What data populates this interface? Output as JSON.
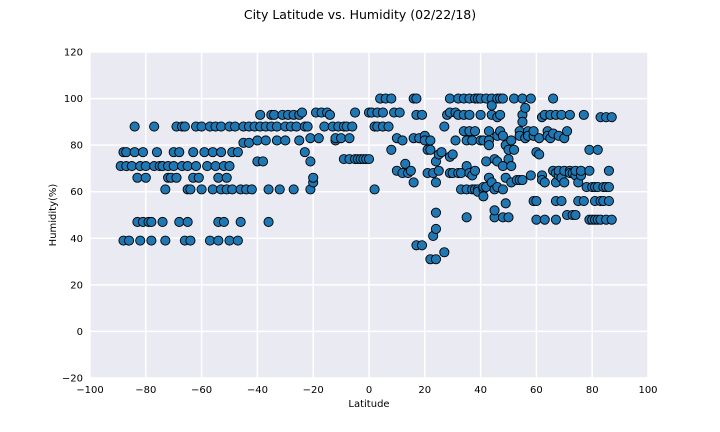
{
  "chart_data": {
    "type": "scatter",
    "title": "City Latitude vs. Humidity (02/22/18)",
    "xlabel": "Latitude",
    "ylabel": "Humidity(%)",
    "xlim": [
      -100,
      100
    ],
    "ylim": [
      -20,
      120
    ],
    "xticks": [
      -100,
      -80,
      -60,
      -40,
      -20,
      0,
      20,
      40,
      60,
      80,
      100
    ],
    "yticks": [
      -20,
      0,
      20,
      40,
      60,
      80,
      100,
      120
    ],
    "grid": true,
    "colors": {
      "marker": "#1f77b4",
      "edge": "#000000",
      "plot_bg": "#eaeaf2",
      "grid": "#ffffff"
    },
    "points": [
      [
        -89,
        71
      ],
      [
        -88,
        77
      ],
      [
        -88,
        39
      ],
      [
        -87,
        77
      ],
      [
        -87,
        71
      ],
      [
        -86,
        39
      ],
      [
        -85,
        71
      ],
      [
        -84,
        77
      ],
      [
        -84,
        88
      ],
      [
        -83,
        66
      ],
      [
        -83,
        47
      ],
      [
        -82,
        71
      ],
      [
        -82,
        39
      ],
      [
        -81,
        77
      ],
      [
        -81,
        47
      ],
      [
        -80,
        66
      ],
      [
        -80,
        71
      ],
      [
        -79,
        47
      ],
      [
        -78,
        39
      ],
      [
        -78,
        47
      ],
      [
        -77,
        88
      ],
      [
        -77,
        71
      ],
      [
        -76,
        77
      ],
      [
        -75,
        71
      ],
      [
        -74,
        47
      ],
      [
        -74,
        71
      ],
      [
        -73,
        39
      ],
      [
        -73,
        61
      ],
      [
        -72,
        66
      ],
      [
        -72,
        71
      ],
      [
        -71,
        66
      ],
      [
        -70,
        77
      ],
      [
        -70,
        71
      ],
      [
        -69,
        88
      ],
      [
        -69,
        66
      ],
      [
        -68,
        47
      ],
      [
        -68,
        77
      ],
      [
        -67,
        71
      ],
      [
        -67,
        88
      ],
      [
        -66,
        39
      ],
      [
        -66,
        88
      ],
      [
        -65,
        61
      ],
      [
        -65,
        71
      ],
      [
        -65,
        47
      ],
      [
        -64,
        39
      ],
      [
        -64,
        61
      ],
      [
        -63,
        66
      ],
      [
        -63,
        77
      ],
      [
        -62,
        88
      ],
      [
        -62,
        71
      ],
      [
        -61,
        66
      ],
      [
        -60,
        88
      ],
      [
        -60,
        61
      ],
      [
        -59,
        77
      ],
      [
        -58,
        71
      ],
      [
        -57,
        88
      ],
      [
        -57,
        39
      ],
      [
        -56,
        61
      ],
      [
        -56,
        77
      ],
      [
        -55,
        88
      ],
      [
        -55,
        71
      ],
      [
        -54,
        66
      ],
      [
        -54,
        47
      ],
      [
        -54,
        39
      ],
      [
        -53,
        61
      ],
      [
        -53,
        88
      ],
      [
        -53,
        77
      ],
      [
        -52,
        71
      ],
      [
        -52,
        47
      ],
      [
        -51,
        66
      ],
      [
        -51,
        61
      ],
      [
        -50,
        71
      ],
      [
        -50,
        88
      ],
      [
        -50,
        39
      ],
      [
        -49,
        77
      ],
      [
        -49,
        61
      ],
      [
        -48,
        88
      ],
      [
        -47,
        39
      ],
      [
        -47,
        77
      ],
      [
        -46,
        61
      ],
      [
        -46,
        47
      ],
      [
        -45,
        88
      ],
      [
        -45,
        81
      ],
      [
        -44,
        61
      ],
      [
        -43,
        88
      ],
      [
        -43,
        81
      ],
      [
        -42,
        61
      ],
      [
        -41,
        88
      ],
      [
        -40,
        82
      ],
      [
        -40,
        73
      ],
      [
        -39,
        93
      ],
      [
        -39,
        88
      ],
      [
        -38,
        73
      ],
      [
        -37,
        82
      ],
      [
        -37,
        88
      ],
      [
        -36,
        61
      ],
      [
        -36,
        47
      ],
      [
        -35,
        93
      ],
      [
        -35,
        88
      ],
      [
        -34,
        93
      ],
      [
        -33,
        82
      ],
      [
        -33,
        88
      ],
      [
        -32,
        61
      ],
      [
        -31,
        93
      ],
      [
        -30,
        88
      ],
      [
        -30,
        82
      ],
      [
        -29,
        93
      ],
      [
        -28,
        88
      ],
      [
        -27,
        61
      ],
      [
        -27,
        93
      ],
      [
        -26,
        88
      ],
      [
        -25,
        93
      ],
      [
        -25,
        82
      ],
      [
        -24,
        94
      ],
      [
        -23,
        77
      ],
      [
        -23,
        88
      ],
      [
        -22,
        88
      ],
      [
        -21,
        83
      ],
      [
        -21,
        73
      ],
      [
        -21,
        61
      ],
      [
        -20,
        64
      ],
      [
        -20,
        66
      ],
      [
        -19,
        94
      ],
      [
        -18,
        83
      ],
      [
        -17,
        94
      ],
      [
        -16,
        88
      ],
      [
        -15,
        94
      ],
      [
        -14,
        93
      ],
      [
        -13,
        88
      ],
      [
        -12,
        82
      ],
      [
        -12,
        83
      ],
      [
        -11,
        88
      ],
      [
        -10,
        83
      ],
      [
        -9,
        88
      ],
      [
        -9,
        74
      ],
      [
        -8,
        88
      ],
      [
        -7,
        83
      ],
      [
        -7,
        74
      ],
      [
        -6,
        88
      ],
      [
        -5,
        74
      ],
      [
        -5,
        94
      ],
      [
        -4,
        74
      ],
      [
        -3,
        74
      ],
      [
        -2,
        74
      ],
      [
        -1,
        74
      ],
      [
        0,
        94
      ],
      [
        0,
        74
      ],
      [
        1,
        94
      ],
      [
        2,
        88
      ],
      [
        2,
        61
      ],
      [
        3,
        94
      ],
      [
        3,
        88
      ],
      [
        4,
        100
      ],
      [
        5,
        94
      ],
      [
        5,
        88
      ],
      [
        6,
        100
      ],
      [
        7,
        88
      ],
      [
        8,
        100
      ],
      [
        8,
        78
      ],
      [
        9,
        94
      ],
      [
        10,
        83
      ],
      [
        10,
        69
      ],
      [
        11,
        94
      ],
      [
        12,
        68
      ],
      [
        12,
        82
      ],
      [
        13,
        72
      ],
      [
        14,
        68
      ],
      [
        15,
        69
      ],
      [
        16,
        83
      ],
      [
        16,
        100
      ],
      [
        16,
        64
      ],
      [
        17,
        100
      ],
      [
        17,
        93
      ],
      [
        17,
        37
      ],
      [
        18,
        83
      ],
      [
        19,
        37
      ],
      [
        19,
        93
      ],
      [
        20,
        84
      ],
      [
        20,
        82
      ],
      [
        21,
        78
      ],
      [
        21,
        68
      ],
      [
        22,
        31
      ],
      [
        22,
        82
      ],
      [
        22,
        78
      ],
      [
        23,
        68
      ],
      [
        23,
        41
      ],
      [
        24,
        31
      ],
      [
        24,
        73
      ],
      [
        24,
        64
      ],
      [
        24,
        44
      ],
      [
        24,
        51
      ],
      [
        25,
        69
      ],
      [
        25,
        76
      ],
      [
        26,
        77
      ],
      [
        27,
        88
      ],
      [
        27,
        34
      ],
      [
        28,
        93
      ],
      [
        29,
        94
      ],
      [
        29,
        68
      ],
      [
        29,
        100
      ],
      [
        29,
        75
      ],
      [
        30,
        76
      ],
      [
        30,
        68
      ],
      [
        31,
        94
      ],
      [
        31,
        82
      ],
      [
        32,
        68
      ],
      [
        32,
        93
      ],
      [
        32,
        100
      ],
      [
        33,
        61
      ],
      [
        33,
        68
      ],
      [
        34,
        100
      ],
      [
        34,
        86
      ],
      [
        34,
        93
      ],
      [
        35,
        71
      ],
      [
        35,
        61
      ],
      [
        35,
        82
      ],
      [
        35,
        49
      ],
      [
        36,
        93
      ],
      [
        36,
        100
      ],
      [
        36,
        68
      ],
      [
        36,
        86
      ],
      [
        37,
        67
      ],
      [
        37,
        82
      ],
      [
        37,
        61
      ],
      [
        38,
        86
      ],
      [
        38,
        61
      ],
      [
        38,
        100
      ],
      [
        38,
        69
      ],
      [
        39,
        61
      ],
      [
        39,
        100
      ],
      [
        39,
        60
      ],
      [
        40,
        93
      ],
      [
        40,
        82
      ],
      [
        40,
        100
      ],
      [
        41,
        61
      ],
      [
        41,
        82
      ],
      [
        41,
        62
      ],
      [
        41,
        58
      ],
      [
        42,
        100
      ],
      [
        42,
        73
      ],
      [
        42,
        62
      ],
      [
        43,
        82
      ],
      [
        43,
        86
      ],
      [
        43,
        80
      ],
      [
        43,
        66
      ],
      [
        44,
        64
      ],
      [
        44,
        100
      ],
      [
        44,
        93
      ],
      [
        44,
        97
      ],
      [
        45,
        74
      ],
      [
        45,
        61
      ],
      [
        45,
        49
      ],
      [
        45,
        52
      ],
      [
        46,
        100
      ],
      [
        46,
        92
      ],
      [
        46,
        73
      ],
      [
        46,
        84
      ],
      [
        46,
        62
      ],
      [
        47,
        100
      ],
      [
        47,
        93
      ],
      [
        47,
        86
      ],
      [
        48,
        100
      ],
      [
        48,
        49
      ],
      [
        48,
        61
      ],
      [
        48,
        84
      ],
      [
        48,
        71
      ],
      [
        49,
        80
      ],
      [
        49,
        55
      ],
      [
        49,
        66
      ],
      [
        50,
        78
      ],
      [
        50,
        74
      ],
      [
        50,
        49
      ],
      [
        51,
        82
      ],
      [
        51,
        64
      ],
      [
        51,
        71
      ],
      [
        52,
        100
      ],
      [
        52,
        78
      ],
      [
        53,
        65
      ],
      [
        54,
        86
      ],
      [
        54,
        84
      ],
      [
        54,
        65
      ],
      [
        55,
        93
      ],
      [
        55,
        90
      ],
      [
        55,
        100
      ],
      [
        55,
        65
      ],
      [
        56,
        96
      ],
      [
        56,
        83
      ],
      [
        57,
        86
      ],
      [
        57,
        84
      ],
      [
        58,
        100
      ],
      [
        58,
        67
      ],
      [
        59,
        84
      ],
      [
        59,
        86
      ],
      [
        59,
        56
      ],
      [
        60,
        77
      ],
      [
        60,
        56
      ],
      [
        60,
        48
      ],
      [
        61,
        83
      ],
      [
        61,
        76
      ],
      [
        62,
        67
      ],
      [
        62,
        65
      ],
      [
        62,
        92
      ],
      [
        63,
        93
      ],
      [
        63,
        64
      ],
      [
        63,
        48
      ],
      [
        64,
        86
      ],
      [
        64,
        84
      ],
      [
        65,
        83
      ],
      [
        65,
        93
      ],
      [
        66,
        100
      ],
      [
        66,
        85
      ],
      [
        66,
        69
      ],
      [
        67,
        64
      ],
      [
        67,
        93
      ],
      [
        67,
        68
      ],
      [
        67,
        48
      ],
      [
        67,
        56
      ],
      [
        68,
        84
      ],
      [
        68,
        67
      ],
      [
        68,
        69
      ],
      [
        69,
        56
      ],
      [
        69,
        93
      ],
      [
        69,
        66
      ],
      [
        70,
        83
      ],
      [
        70,
        69
      ],
      [
        70,
        64
      ],
      [
        71,
        86
      ],
      [
        71,
        50
      ],
      [
        72,
        93
      ],
      [
        72,
        69
      ],
      [
        72,
        68
      ],
      [
        73,
        68
      ],
      [
        73,
        50
      ],
      [
        74,
        67
      ],
      [
        74,
        69
      ],
      [
        74,
        50
      ],
      [
        75,
        64
      ],
      [
        75,
        56
      ],
      [
        76,
        67
      ],
      [
        76,
        69
      ],
      [
        77,
        56
      ],
      [
        77,
        93
      ],
      [
        78,
        62
      ],
      [
        79,
        69
      ],
      [
        79,
        78
      ],
      [
        79,
        48
      ],
      [
        80,
        62
      ],
      [
        80,
        48
      ],
      [
        81,
        62
      ],
      [
        81,
        56
      ],
      [
        81,
        48
      ],
      [
        82,
        62
      ],
      [
        82,
        78
      ],
      [
        82,
        48
      ],
      [
        83,
        92
      ],
      [
        83,
        56
      ],
      [
        83,
        48
      ],
      [
        84,
        56
      ],
      [
        84,
        62
      ],
      [
        85,
        62
      ],
      [
        85,
        92
      ],
      [
        85,
        48
      ],
      [
        86,
        56
      ],
      [
        86,
        69
      ],
      [
        86,
        62
      ],
      [
        87,
        92
      ],
      [
        87,
        48
      ]
    ]
  }
}
